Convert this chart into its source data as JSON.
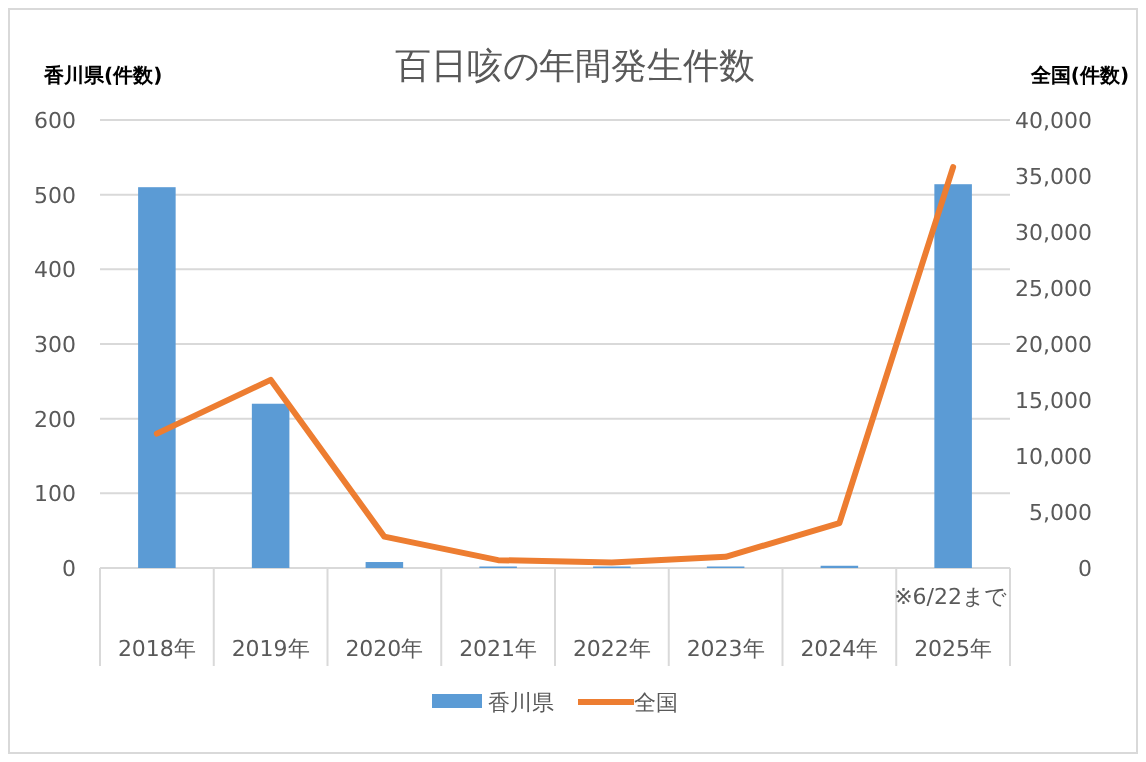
{
  "chart_data": {
    "type": "bar",
    "title": "百日咳の年間発生件数",
    "ylabel": "香川県(件数)",
    "y2label": "全国(件数)",
    "categories": [
      "2018年",
      "2019年",
      "2020年",
      "2021年",
      "2022年",
      "2023年",
      "2024年",
      "2025年"
    ],
    "series": [
      {
        "name": "香川県",
        "color": "#5b9bd5",
        "values": [
          510,
          220,
          8,
          2,
          2,
          2,
          3,
          514
        ]
      },
      {
        "name": "全国",
        "type": "line",
        "axis": "y2",
        "color": "#ed7d31",
        "marker": "none",
        "values": [
          12000,
          16800,
          2800,
          700,
          500,
          1000,
          4000,
          35800
        ]
      }
    ],
    "ylim": [
      0,
      600
    ],
    "yticks": [
      0,
      100,
      200,
      300,
      400,
      500,
      600
    ],
    "y2lim": [
      0,
      40000
    ],
    "y2ticks": [
      {
        "value": 0,
        "label": "0"
      },
      {
        "value": 5000,
        "label": "5,000"
      },
      {
        "value": 10000,
        "label": "10,000"
      },
      {
        "value": 15000,
        "label": "15,000"
      },
      {
        "value": 20000,
        "label": "20,000"
      },
      {
        "value": 25000,
        "label": "25,000"
      },
      {
        "value": 30000,
        "label": "30,000"
      },
      {
        "value": 35000,
        "label": "35,000"
      },
      {
        "value": 40000,
        "label": "40,000"
      }
    ],
    "grid": "y",
    "legend": "bottom",
    "annotations": [
      "※6/22まで"
    ]
  }
}
